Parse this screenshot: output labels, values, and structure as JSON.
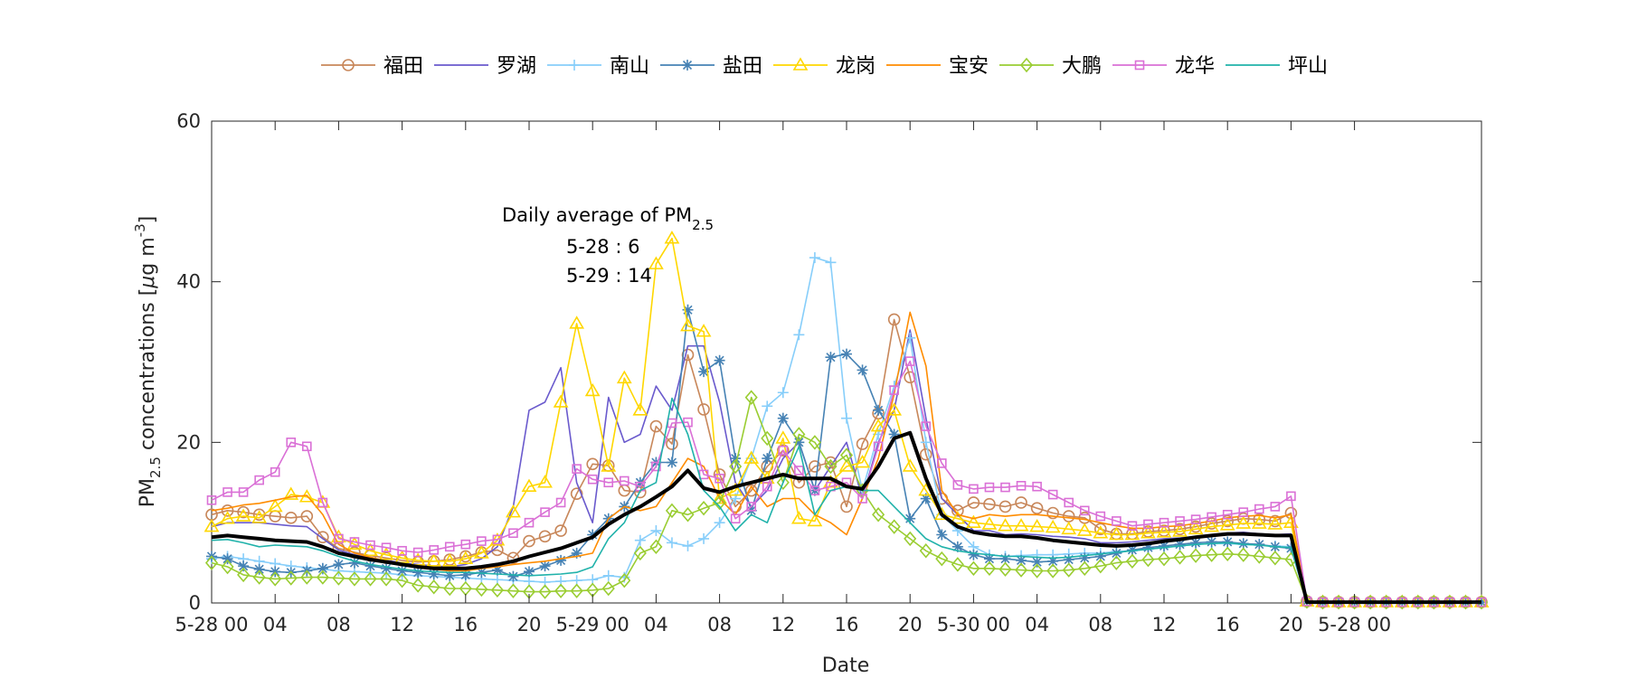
{
  "chart_data": {
    "type": "line",
    "xlabel": "Date",
    "ylabel_parts": [
      "PM",
      "2.5",
      " concentrations [",
      "μ",
      "g m",
      "-3",
      "]"
    ],
    "ylim": [
      0,
      60
    ],
    "yticks": [
      0,
      20,
      40,
      60
    ],
    "x_count": 81,
    "xlim": [
      0,
      80
    ],
    "xticks": [
      {
        "x": 0,
        "label": "5-28 00"
      },
      {
        "x": 4,
        "label": "04"
      },
      {
        "x": 8,
        "label": "08"
      },
      {
        "x": 12,
        "label": "12"
      },
      {
        "x": 16,
        "label": "16"
      },
      {
        "x": 20,
        "label": "20"
      },
      {
        "x": 24,
        "label": "5-29 00"
      },
      {
        "x": 28,
        "label": "04"
      },
      {
        "x": 32,
        "label": "08"
      },
      {
        "x": 36,
        "label": "12"
      },
      {
        "x": 40,
        "label": "16"
      },
      {
        "x": 44,
        "label": "20"
      },
      {
        "x": 48,
        "label": "5-30 00"
      },
      {
        "x": 52,
        "label": "04"
      },
      {
        "x": 56,
        "label": "08"
      },
      {
        "x": 60,
        "label": "12"
      },
      {
        "x": 64,
        "label": "16"
      },
      {
        "x": 68,
        "label": "20"
      },
      {
        "x": 72,
        "label": "5-28 00"
      }
    ],
    "grid": false,
    "legend_position": "top",
    "annotation": {
      "title_main": "Daily average of PM",
      "title_sub": "2.5",
      "lines": [
        "5-28 : 6",
        "5-29 : 14"
      ]
    },
    "series": [
      {
        "name": "福田",
        "color": "#c8875a",
        "marker": "circle",
        "values": [
          11,
          11.5,
          11.3,
          11,
          10.8,
          10.6,
          10.8,
          8.2,
          6.8,
          6.3,
          5.9,
          5.6,
          5.3,
          5.1,
          5.2,
          5.4,
          5.8,
          6.3,
          6.6,
          5.6,
          7.7,
          8.3,
          9,
          13.6,
          17.3,
          17.1,
          14,
          13.8,
          22,
          19.8,
          30.9,
          24.1,
          16,
          12,
          14,
          17,
          19,
          15,
          17,
          17.5,
          12,
          19.8,
          23.6,
          35.3,
          28.1,
          18.5,
          13,
          11.5,
          12.5,
          12.3,
          12,
          12.5,
          11.8,
          11.2,
          10.8,
          10.6,
          9.2,
          8.6,
          8.6,
          8.9,
          9,
          9.2,
          9.5,
          9.9,
          10.2,
          10.5,
          10.4,
          10.2,
          11.2,
          0.2,
          0.1,
          0.1,
          0.1,
          0.1,
          0.1,
          0.1,
          0.1,
          0.1,
          0.1,
          0.1,
          0.1
        ]
      },
      {
        "name": "罗湖",
        "color": "#6a5acd",
        "marker": "none",
        "values": [
          9.5,
          10,
          10,
          10,
          9.8,
          9.6,
          9.5,
          8,
          6.6,
          6,
          5.6,
          5.3,
          5,
          4.8,
          4.6,
          4.5,
          4.8,
          5.5,
          7,
          12,
          24,
          25,
          29.3,
          15,
          10,
          25.6,
          20,
          21,
          27,
          24,
          32,
          32,
          25,
          15,
          12,
          14,
          18,
          20,
          14,
          17,
          20,
          13,
          20,
          24,
          34,
          23,
          13,
          11,
          9,
          9,
          8.5,
          8.6,
          8.5,
          8.3,
          8.2,
          8,
          7.5,
          7.5,
          7.6,
          7.8,
          8,
          8.1,
          8.3,
          8.5,
          8.7,
          8.8,
          8.6,
          8.5,
          8.6,
          0.2,
          0.1,
          0.1,
          0.1,
          0.1,
          0.1,
          0.1,
          0.1,
          0.1,
          0.1,
          0.1,
          0.1
        ]
      },
      {
        "name": "南山",
        "color": "#87cefa",
        "marker": "plus",
        "values": [
          5.5,
          5.8,
          5.5,
          5.2,
          4.9,
          4.6,
          4.4,
          4.2,
          4,
          3.9,
          3.8,
          3.7,
          3.5,
          3.4,
          3.3,
          3.2,
          3.1,
          3,
          2.9,
          2.8,
          2.7,
          2.6,
          2.7,
          2.8,
          2.9,
          3.4,
          3.2,
          7.8,
          9,
          7.5,
          7.1,
          8,
          10,
          13,
          18,
          24.5,
          26.2,
          33.4,
          43,
          42.4,
          23,
          14,
          21,
          27,
          33,
          20,
          11,
          9,
          7,
          6,
          5.8,
          5.9,
          6,
          6,
          6.1,
          6.2,
          6.2,
          6.4,
          6.5,
          6.7,
          6.9,
          7.1,
          7.3,
          7.4,
          7.4,
          7.3,
          7.2,
          7.1,
          7,
          0.2,
          0.1,
          0.1,
          0.1,
          0.1,
          0.1,
          0.1,
          0.1,
          0.1,
          0.1,
          0.1,
          0.1
        ]
      },
      {
        "name": "盐田",
        "color": "#4682b4",
        "marker": "star",
        "values": [
          5.8,
          5.5,
          4.6,
          4.2,
          3.9,
          3.8,
          4,
          4.3,
          4.8,
          5,
          4.6,
          4.3,
          4,
          3.8,
          3.6,
          3.4,
          3.5,
          3.8,
          4.1,
          3.3,
          3.9,
          4.6,
          5.3,
          6.2,
          8.5,
          10.5,
          12,
          15,
          17.5,
          17.5,
          36.5,
          28.8,
          30.2,
          18,
          11.5,
          18,
          23,
          20,
          14,
          30.6,
          31,
          29,
          24,
          21,
          10.5,
          13,
          8.5,
          7,
          6,
          5.5,
          5.5,
          5.3,
          5.1,
          5.2,
          5.4,
          5.6,
          5.8,
          6.2,
          6.6,
          6.9,
          7.1,
          7.3,
          7.5,
          7.6,
          7.6,
          7.4,
          7.3,
          7,
          6.8,
          0.2,
          0.1,
          0.1,
          0.1,
          0.1,
          0.1,
          0.1,
          0.1,
          0.1,
          0.1,
          0.1,
          0.1
        ]
      },
      {
        "name": "龙岗",
        "color": "#ffd700",
        "marker": "triangle",
        "values": [
          9.5,
          10.5,
          10.8,
          10.6,
          12,
          13.5,
          13.2,
          12.5,
          8.2,
          7.3,
          6.5,
          6,
          5.6,
          5.3,
          5.2,
          5.2,
          5.5,
          6.2,
          7.8,
          11.3,
          14.5,
          15,
          25,
          34.8,
          26.4,
          17,
          28,
          24,
          42.2,
          45.4,
          34.5,
          33.8,
          13,
          14,
          18,
          15.5,
          20.5,
          10.5,
          10.2,
          15,
          17,
          17.5,
          22,
          24,
          17,
          14,
          11,
          10.5,
          10,
          9.8,
          9.6,
          9.6,
          9.5,
          9.4,
          9.2,
          9,
          8.7,
          8.5,
          8.5,
          8.7,
          8.8,
          8.9,
          9.2,
          9.5,
          9.7,
          9.9,
          9.9,
          9.8,
          10,
          0.2,
          0.1,
          0.1,
          0.1,
          0.1,
          0.1,
          0.1,
          0.1,
          0.1,
          0.1,
          0.1,
          0.1
        ]
      },
      {
        "name": "宝安",
        "color": "#ff8c00",
        "marker": "none",
        "values": [
          11.5,
          11.8,
          12.2,
          12.4,
          12.8,
          13.2,
          13.4,
          11,
          7.3,
          6.2,
          5.7,
          5.2,
          4.8,
          4.5,
          4.2,
          4,
          4,
          4.3,
          4.5,
          4.8,
          5,
          5.2,
          5.5,
          5.8,
          6.2,
          10.5,
          12,
          11.5,
          12,
          15,
          18,
          17,
          13,
          11,
          14.5,
          12,
          13,
          13,
          11,
          10,
          8.5,
          13,
          18,
          26,
          36.2,
          29.5,
          14,
          11,
          10.5,
          11,
          10.8,
          11,
          11,
          10.8,
          10.6,
          10.4,
          10,
          9.6,
          9.3,
          9.3,
          9.5,
          9.6,
          9.9,
          10.2,
          10.6,
          10.8,
          10.9,
          10.6,
          11,
          0.2,
          0.1,
          0.1,
          0.1,
          0.1,
          0.1,
          0.1,
          0.1,
          0.1,
          0.1,
          0.1,
          0.1
        ]
      },
      {
        "name": "大鹏",
        "color": "#9acd32",
        "marker": "diamond",
        "values": [
          5,
          4.5,
          3.5,
          3.2,
          3,
          3.1,
          3.2,
          3.2,
          3.1,
          3,
          3,
          3,
          2.8,
          2.2,
          2,
          1.8,
          1.8,
          1.7,
          1.6,
          1.5,
          1.4,
          1.4,
          1.5,
          1.5,
          1.6,
          1.8,
          2.8,
          6.2,
          7,
          11.5,
          11,
          11.8,
          12.5,
          17,
          25.6,
          20.5,
          15,
          21,
          20,
          17,
          18.4,
          14,
          11,
          9.5,
          8,
          6.5,
          5.5,
          4.8,
          4.3,
          4.3,
          4.2,
          4.1,
          4,
          4,
          4.1,
          4.3,
          4.6,
          5,
          5.2,
          5.4,
          5.5,
          5.7,
          5.9,
          6,
          6.1,
          6,
          5.8,
          5.6,
          5.4,
          0.2,
          0.1,
          0.1,
          0.1,
          0.1,
          0.1,
          0.1,
          0.1,
          0.1,
          0.1,
          0.1,
          0.1
        ]
      },
      {
        "name": "龙华",
        "color": "#da70d6",
        "marker": "square",
        "values": [
          12.8,
          13.8,
          13.8,
          15.3,
          16.3,
          20,
          19.5,
          12.5,
          8,
          7.6,
          7.2,
          6.9,
          6.5,
          6.3,
          6.6,
          7,
          7.3,
          7.7,
          7.9,
          8.7,
          10,
          11.3,
          12.5,
          16.7,
          15.4,
          15,
          15.2,
          14.5,
          17,
          22.4,
          22.5,
          16,
          15.5,
          10.5,
          12,
          14.5,
          19,
          16.5,
          14,
          14.5,
          15,
          13,
          19.5,
          26.5,
          30.1,
          22,
          17.4,
          14.7,
          14.2,
          14.4,
          14.4,
          14.6,
          14.5,
          13.5,
          12.5,
          11.5,
          10.8,
          10.2,
          9.6,
          9.8,
          10,
          10.2,
          10.4,
          10.7,
          11,
          11.3,
          11.7,
          12,
          13.3,
          0.2,
          0.1,
          0.1,
          0.1,
          0.1,
          0.1,
          0.1,
          0.1,
          0.1,
          0.1,
          0.1,
          0.1
        ]
      },
      {
        "name": "坪山",
        "color": "#20b2aa",
        "marker": "none",
        "values": [
          7.8,
          7.9,
          7.5,
          7,
          7.2,
          7.1,
          7,
          6.5,
          5.8,
          5.2,
          4.8,
          4.5,
          4.2,
          4,
          3.9,
          3.8,
          3.8,
          3.7,
          3.6,
          3.5,
          3.4,
          3.5,
          3.6,
          3.8,
          4.5,
          8,
          10,
          14,
          15,
          25.5,
          21,
          14,
          12,
          9,
          11,
          10,
          15,
          19.5,
          11,
          14,
          14.5,
          14,
          14,
          12,
          10,
          8,
          7,
          6.5,
          6.2,
          6,
          5.8,
          5.8,
          5.7,
          5.6,
          5.7,
          5.9,
          6.1,
          6.3,
          6.5,
          6.7,
          6.9,
          7.1,
          7.3,
          7.4,
          7.5,
          7.3,
          7.2,
          7,
          6.9,
          0.2,
          0.1,
          0.1,
          0.1,
          0.1,
          0.1,
          0.1,
          0.1,
          0.1,
          0.1,
          0.1,
          0.1
        ]
      },
      {
        "name": "",
        "color": "#000000",
        "marker": "none",
        "bold": true,
        "values": [
          8.2,
          8.4,
          8.2,
          8,
          7.8,
          7.7,
          7.6,
          7,
          6.2,
          5.8,
          5.4,
          5.1,
          4.8,
          4.5,
          4.3,
          4.3,
          4.3,
          4.5,
          4.8,
          5.2,
          5.8,
          6.3,
          6.8,
          7.5,
          8.2,
          9.8,
          11,
          12,
          13.2,
          14.5,
          16.5,
          14.3,
          13.8,
          14.5,
          15,
          15.5,
          16,
          15.5,
          15.5,
          15.5,
          14.5,
          14.2,
          17,
          20.5,
          21.2,
          15.5,
          11,
          9.5,
          8.8,
          8.5,
          8.3,
          8.3,
          8.1,
          7.8,
          7.6,
          7.4,
          7.2,
          7.1,
          7.2,
          7.4,
          7.7,
          7.9,
          8.2,
          8.4,
          8.6,
          8.6,
          8.5,
          8.4,
          8.4,
          0.1,
          0.1,
          0.1,
          0.1,
          0.1,
          0.1,
          0.1,
          0.1,
          0.1,
          0.1,
          0.1,
          0.1
        ]
      }
    ]
  }
}
